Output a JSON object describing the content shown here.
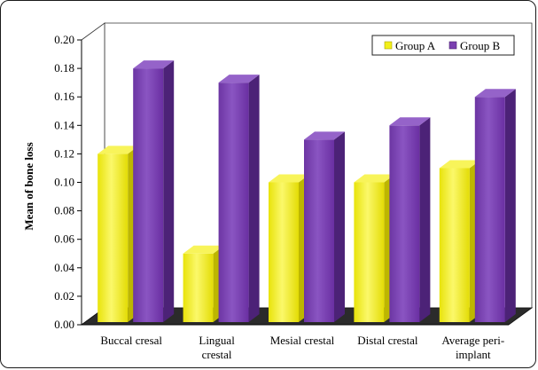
{
  "chart_data": {
    "type": "bar",
    "ylabel": "Mean of bone loss",
    "ylim": [
      0,
      0.2
    ],
    "yticks": [
      "0.00",
      "0.02",
      "0.04",
      "0.06",
      "0.08",
      "0.10",
      "0.12",
      "0.14",
      "0.16",
      "0.18",
      "0.20"
    ],
    "categories": [
      [
        "Buccal cresal"
      ],
      [
        "Lingual",
        "crestal"
      ],
      [
        "Mesial crestal"
      ],
      [
        "Distal crestal"
      ],
      [
        "Average peri-",
        "implant"
      ]
    ],
    "series": [
      {
        "name": "Group A",
        "values": [
          0.12,
          0.05,
          0.1,
          0.1,
          0.11
        ],
        "color": "#f2ef1a"
      },
      {
        "name": "Group B",
        "values": [
          0.18,
          0.17,
          0.13,
          0.14,
          0.16
        ],
        "color": "#7a3fb0"
      }
    ],
    "legend_position": "top-right",
    "style": "3d-bars"
  }
}
